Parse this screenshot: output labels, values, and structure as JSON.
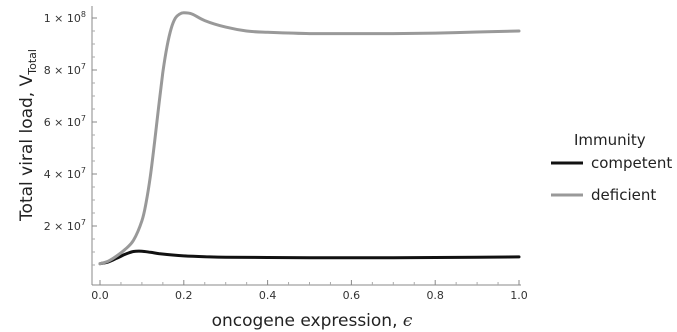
{
  "chart_data": {
    "type": "line",
    "xlabel": "oncogene expression, ",
    "xlabel_symbol": "ϵ",
    "ylabel": "Total viral load, V",
    "ylabel_sub": "Total",
    "xlim": [
      0,
      1.0
    ],
    "ylim": [
      3000000,
      103000000
    ],
    "x_ticks": [
      {
        "value": 0.0,
        "label": "0.0"
      },
      {
        "value": 0.2,
        "label": "0.2"
      },
      {
        "value": 0.4,
        "label": "0.4"
      },
      {
        "value": 0.6,
        "label": "0.6"
      },
      {
        "value": 0.8,
        "label": "0.8"
      },
      {
        "value": 1.0,
        "label": "1.0"
      }
    ],
    "y_ticks": [
      {
        "value": 20000000,
        "mantissa": "2",
        "exponent": "7"
      },
      {
        "value": 40000000,
        "mantissa": "4",
        "exponent": "7"
      },
      {
        "value": 60000000,
        "mantissa": "6",
        "exponent": "7"
      },
      {
        "value": 80000000,
        "mantissa": "8",
        "exponent": "7"
      },
      {
        "value": 100000000,
        "mantissa": "1",
        "exponent": "8"
      }
    ],
    "legend": {
      "title": "Immunity",
      "placement": "right"
    },
    "series": [
      {
        "name": "competent",
        "color": "#111111",
        "x": [
          0,
          0.02,
          0.04,
          0.06,
          0.08,
          0.1,
          0.12,
          0.14,
          0.17,
          0.2,
          0.25,
          0.3,
          0.4,
          0.5,
          0.6,
          0.7,
          0.8,
          0.9,
          1.0
        ],
        "y": [
          5500000,
          6200000,
          7600000,
          9100000,
          10200000,
          10300000,
          9900000,
          9400000,
          8900000,
          8500000,
          8200000,
          8000000,
          7900000,
          7800000,
          7800000,
          7800000,
          7900000,
          8000000,
          8100000
        ]
      },
      {
        "name": "deficient",
        "color": "#999999",
        "x": [
          0,
          0.02,
          0.04,
          0.06,
          0.08,
          0.1,
          0.11,
          0.12,
          0.13,
          0.14,
          0.15,
          0.16,
          0.17,
          0.18,
          0.19,
          0.2,
          0.22,
          0.25,
          0.3,
          0.35,
          0.4,
          0.5,
          0.6,
          0.7,
          0.8,
          0.9,
          1.0
        ],
        "y": [
          5500000,
          6500000,
          8500000,
          11000000,
          14500000,
          22000000,
          29000000,
          39000000,
          52000000,
          66000000,
          79000000,
          89000000,
          96000000,
          100000000,
          101500000,
          102000000,
          101500000,
          99000000,
          96500000,
          95000000,
          94500000,
          94000000,
          94000000,
          94000000,
          94200000,
          94600000,
          95000000
        ]
      }
    ]
  }
}
